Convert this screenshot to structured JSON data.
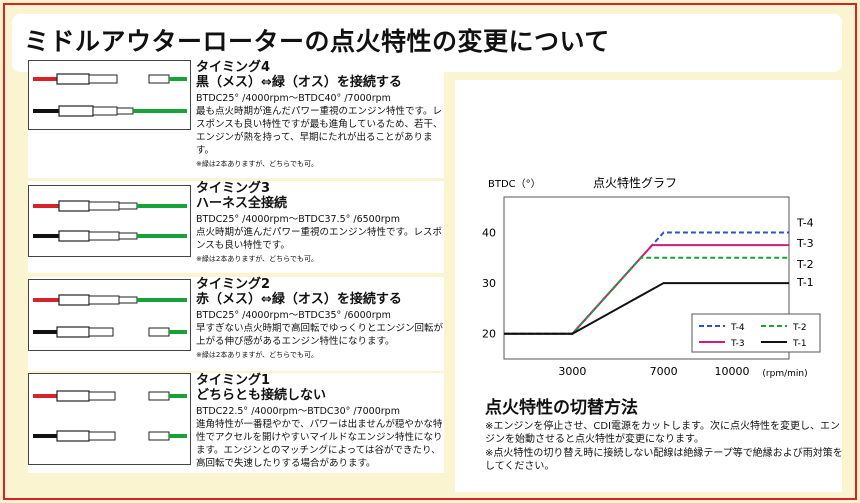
{
  "title": "ミドルアウターローターの点火特性の変更について",
  "timings": [
    {
      "title": "タイミング4",
      "subtitle": "黒（メス）⇔緑（オス）を接続する",
      "spec": "BTDC25° /4000rpm〜BTDC40° /7000rpm",
      "desc": "最も点火時期が進んだパワー重視のエンジン特性です。レスポンスも良い特性ですが最も進角しているため、若干、エンジンが熱を持って、早期にたれが出ることがあります。",
      "note": "※緑は2本ありますが、どちらでも可。"
    },
    {
      "title": "タイミング3",
      "subtitle": "ハーネス全接続",
      "spec": "BTDC25° /4000rpm〜BTDC37.5° /6500rpm",
      "desc": "点火時期が進んだパワー重視のエンジン特性です。レスポンスも良い特性です。",
      "note": "※緑は2本ありますが、どちらでも可。"
    },
    {
      "title": "タイミング2",
      "subtitle": "赤（メス）⇔緑（オス）を接続する",
      "spec": "BTDC25° /4000rpm〜BTDC35° /6000rpm",
      "desc": "早すぎない点火時期で高回転でゆっくりとエンジン回転が上がる伸び感があるエンジン特性になります。",
      "note": "※緑は2本ありますが、どちらでも可。"
    },
    {
      "title": "タイミング1",
      "subtitle": "どちらとも接続しない",
      "spec": "BTDC22.5° /4000rpm〜BTDC30° /7000rpm",
      "desc": "進角特性が一番穏やかで、パワーは出ませんが穏やかな特性でアクセルを開けやすいマイルドなエンジン特性になります。エンジンとのマッチングによっては谷ができたり、高回転で失速したりする場合があります。",
      "note": ""
    }
  ],
  "chart_data": {
    "type": "line",
    "title": "点火特性グラフ",
    "ylabel": "BTDC（°）",
    "xlabel": "(rpm/min)",
    "xlim": [
      0,
      12500
    ],
    "ylim": [
      15,
      47
    ],
    "xticks": [
      3000,
      7000,
      10000
    ],
    "yticks": [
      20,
      30,
      40
    ],
    "grid": false,
    "legend_position": "bottom-right",
    "series": [
      {
        "name": "T-4",
        "end_label": "T-4",
        "color": "#2a55c8",
        "dash": "dash",
        "x": [
          0,
          3000,
          7000,
          12500
        ],
        "y": [
          20,
          20,
          40,
          40
        ]
      },
      {
        "name": "T-3",
        "end_label": "T-3",
        "color": "#d4197f",
        "dash": "solid",
        "x": [
          0,
          3000,
          6500,
          12500
        ],
        "y": [
          20,
          20,
          37.5,
          37.5
        ]
      },
      {
        "name": "T-2",
        "end_label": "T-2",
        "color": "#17a33a",
        "dash": "dash",
        "x": [
          0,
          3000,
          6000,
          12500
        ],
        "y": [
          20,
          20,
          35,
          35
        ]
      },
      {
        "name": "T-1",
        "end_label": "T-1",
        "color": "#111111",
        "dash": "solid",
        "x": [
          0,
          3000,
          7000,
          12500
        ],
        "y": [
          20,
          20,
          30,
          30
        ]
      }
    ]
  },
  "switching": {
    "title": "点火特性の切替方法",
    "note1": "※エンジンを停止させ、CDI電源をカットします。次に点火特性を変更し、エンジンを始動させると点火特性が変更になります。",
    "note2": "※点火特性の切り替え時に接続しない配線は絶縁テープ等で絶縁および雨対策をしてください。"
  }
}
